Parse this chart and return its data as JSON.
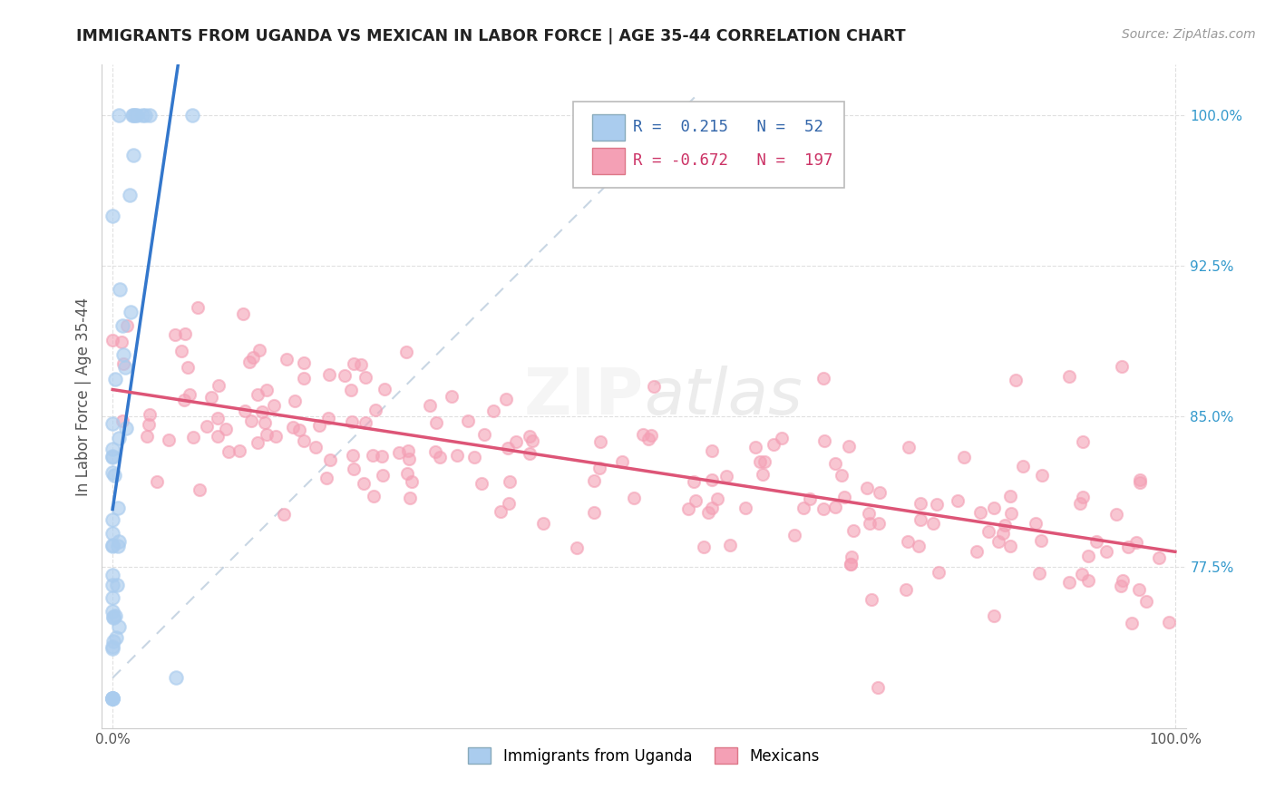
{
  "title": "IMMIGRANTS FROM UGANDA VS MEXICAN IN LABOR FORCE | AGE 35-44 CORRELATION CHART",
  "source_text": "Source: ZipAtlas.com",
  "ylabel": "In Labor Force | Age 35-44",
  "xlim": [
    -0.01,
    1.01
  ],
  "ylim": [
    0.695,
    1.025
  ],
  "ytick_labels": [
    "77.5%",
    "85.0%",
    "92.5%",
    "100.0%"
  ],
  "ytick_values": [
    0.775,
    0.85,
    0.925,
    1.0
  ],
  "xtick_labels": [
    "0.0%",
    "100.0%"
  ],
  "xtick_values": [
    0.0,
    1.0
  ],
  "corr_box": {
    "R1": "0.215",
    "N1": "52",
    "R2": "-0.672",
    "N2": "197",
    "color1": "#aaccee",
    "color2": "#f4a0b5"
  },
  "watermark": "ZIPatlas",
  "scatter_uganda_color": "#aaccee",
  "scatter_mexican_color": "#f4a0b5",
  "trendline_uganda_color": "#3377cc",
  "trendline_mexican_color": "#dd5577",
  "refline_color": "#aaccee",
  "grid_color": "#dddddd",
  "background_color": "#ffffff"
}
